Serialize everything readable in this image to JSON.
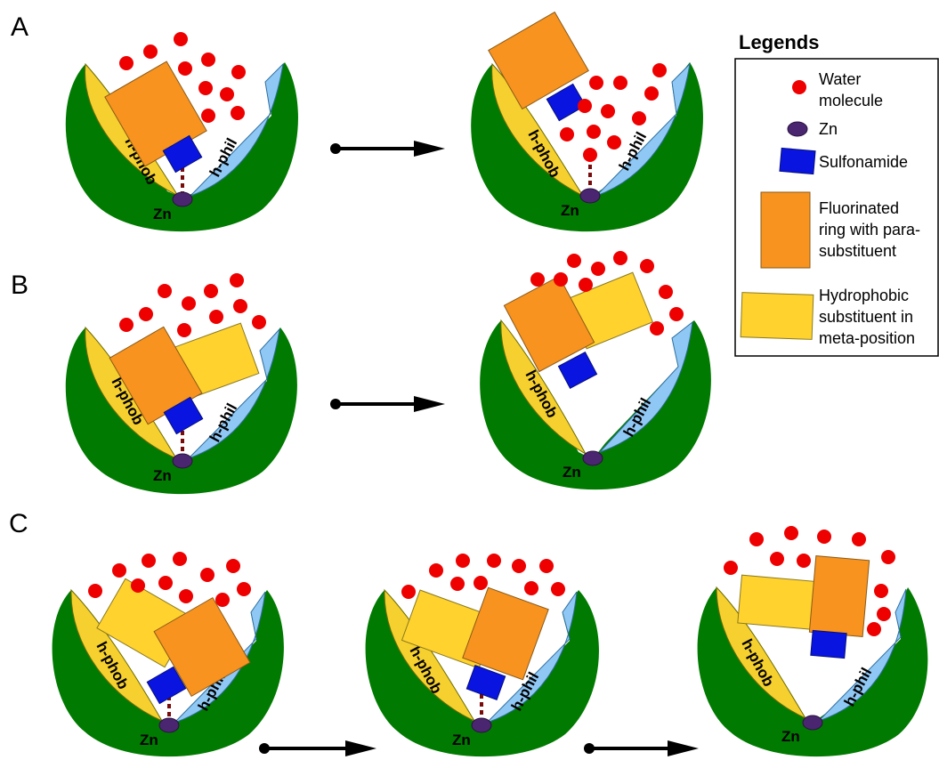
{
  "panels": [
    {
      "label": "A"
    },
    {
      "label": "B"
    },
    {
      "label": "C"
    }
  ],
  "pocket_labels": {
    "hydrophobic": "h-phob",
    "hydrophilic": "h-phil",
    "zinc": "Zn"
  },
  "legend": {
    "title": "Legends",
    "items": [
      {
        "key": "water",
        "lines": [
          "Water",
          "molecule"
        ]
      },
      {
        "key": "zn",
        "lines": [
          "Zn"
        ]
      },
      {
        "key": "sulfonamide",
        "lines": [
          "Sulfonamide"
        ]
      },
      {
        "key": "fluorinated",
        "lines": [
          "Fluorinated",
          "ring with para-",
          "substituent"
        ]
      },
      {
        "key": "hydrophobic",
        "lines": [
          "Hydrophobic",
          "substituent in",
          "meta-position"
        ]
      }
    ]
  },
  "colors": {
    "pocket": "#007a00",
    "hydrophobic_region": "#f6d02e",
    "hydrophilic_region": "#90c8f5",
    "water": "#ee0000",
    "zinc": "#4a2570",
    "sulfonamide": "#0a14e0",
    "fluorinated_ring": "#f7931e",
    "hydrophobic_substituent": "#ffd22e"
  }
}
